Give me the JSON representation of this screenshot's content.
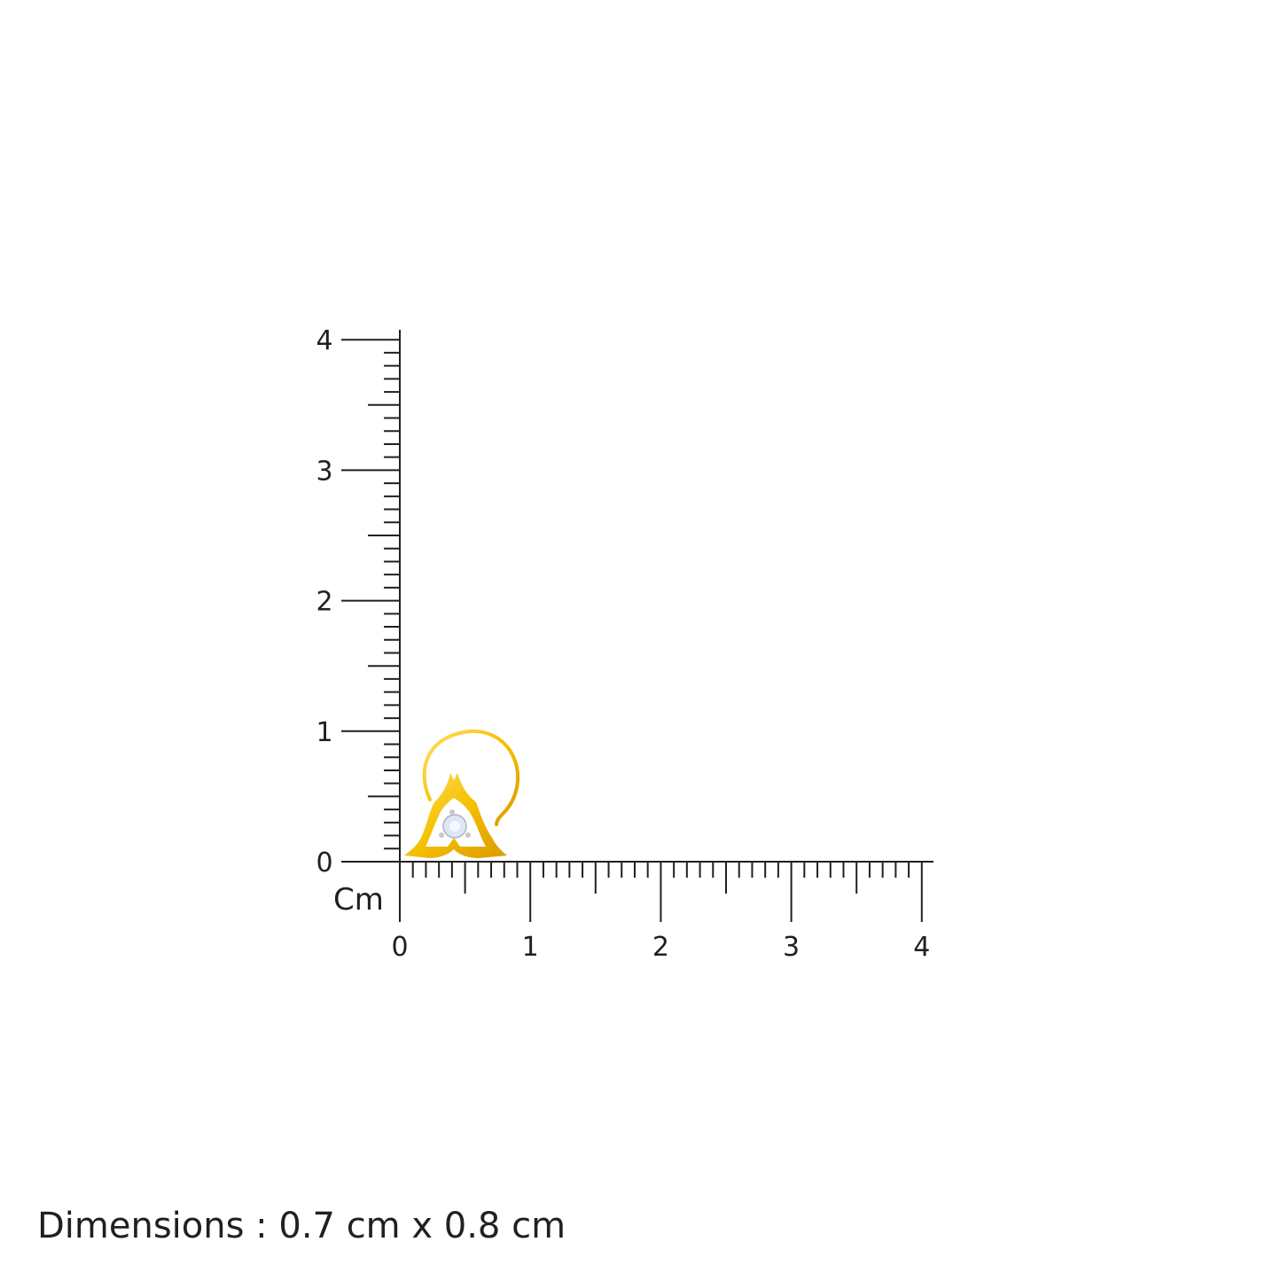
{
  "ruler": {
    "unit_label": "Cm",
    "x_ticks": [
      "0",
      "1",
      "2",
      "3",
      "4"
    ],
    "y_ticks": [
      "0",
      "1",
      "2",
      "3",
      "4"
    ],
    "range_cm": [
      0,
      4
    ],
    "minor_step_cm": 0.1,
    "line_color": "#231f20"
  },
  "product": {
    "type": "nose pin",
    "metal_color": "#f5c000",
    "stone_color": "#dce6f5"
  },
  "dimensions_text": "Dimensions : 0.7 cm x 0.8 cm"
}
